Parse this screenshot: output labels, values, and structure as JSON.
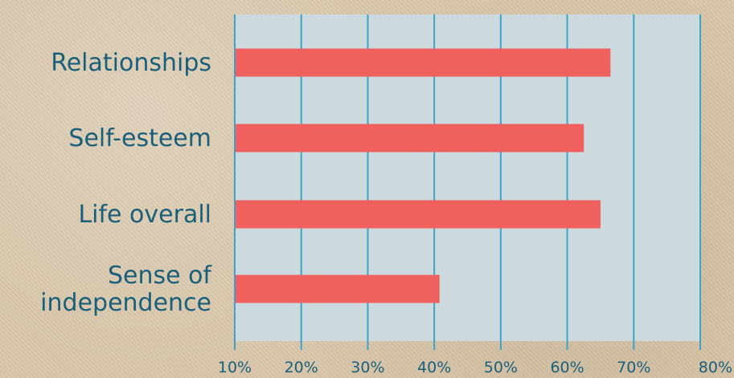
{
  "colors": {
    "background": "#d9c7ab",
    "plot_area": "#ccd9dd",
    "bar": "#f0605f",
    "gridline": "#3fa2c8",
    "text": "#1a5f7a"
  },
  "chart_data": {
    "type": "bar",
    "orientation": "horizontal",
    "categories": [
      [
        "Relationships"
      ],
      [
        "Self-esteem"
      ],
      [
        "Life overall"
      ],
      [
        "Sense of",
        "independence"
      ]
    ],
    "values": [
      66.5,
      62.5,
      65,
      40.8
    ],
    "xlim": [
      10,
      80
    ],
    "x_ticks": [
      10,
      20,
      30,
      40,
      50,
      60,
      70,
      80
    ],
    "x_tick_labels": [
      "10%",
      "20%",
      "30%",
      "40%",
      "50%",
      "60%",
      "70%",
      "80%"
    ],
    "grid": "vertical",
    "legend": "none",
    "title": "",
    "xlabel": "",
    "ylabel": ""
  }
}
